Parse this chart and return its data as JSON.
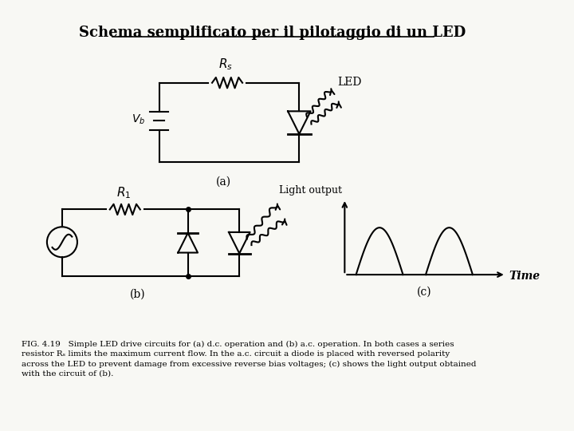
{
  "title": "Schema semplificato per il pilotaggio di un LED",
  "title_fontsize": 13,
  "bg_color": "#f8f8f4",
  "fig_color": "#f8f8f4",
  "caption_line1": "FIG. 4.19   Simple LED drive circuits for (a) d.c. operation and (b) a.c. operation. In both cases a series",
  "caption_line2": "resistor Rₛ limits the maximum current flow. In the a.c. circuit a diode is placed with reversed polarity",
  "caption_line3": "across the LED to prevent damage from excessive reverse bias voltages; (c) shows the light output obtained",
  "caption_line4": "with the circuit of (b).",
  "label_a": "(a)",
  "label_b": "(b)",
  "label_c": "(c)",
  "Rs_label": "$R_s$",
  "Vb_label": "$V_b$",
  "R1_label": "$R_1$",
  "LED_label": "LED",
  "light_output_label": "Light output",
  "time_label": "Time"
}
